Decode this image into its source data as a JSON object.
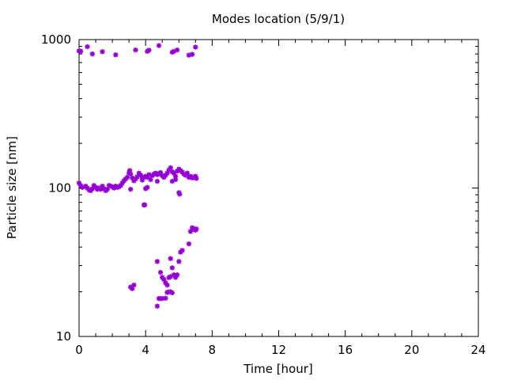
{
  "chart_data": {
    "type": "scatter",
    "title": "Modes location (5/9/1)",
    "xlabel": "Time [hour]",
    "ylabel": "Particle size [nm]",
    "xlim": [
      0,
      24
    ],
    "ylim": [
      10,
      1000
    ],
    "y_scale": "log",
    "x_ticks": [
      "0",
      "4",
      "8",
      "12",
      "16",
      "20",
      "24"
    ],
    "y_ticks": [
      "10",
      "100",
      "1000"
    ],
    "grid": false,
    "marker_color": "#9400d3",
    "series": [
      {
        "points": [
          [
            0.0,
            838
          ],
          [
            0.1,
            835
          ],
          [
            0.5,
            895
          ],
          [
            0.8,
            800
          ],
          [
            1.4,
            829
          ],
          [
            2.2,
            789
          ],
          [
            3.4,
            851
          ],
          [
            4.1,
            834
          ],
          [
            4.2,
            848
          ],
          [
            4.8,
            911
          ],
          [
            5.6,
            822
          ],
          [
            5.7,
            833
          ],
          [
            5.9,
            850
          ],
          [
            6.6,
            785
          ],
          [
            6.8,
            795
          ],
          [
            7.0,
            890
          ],
          [
            0.0,
            108
          ],
          [
            0.1,
            104
          ],
          [
            0.2,
            101
          ],
          [
            0.4,
            103
          ],
          [
            0.5,
            100
          ],
          [
            0.6,
            97
          ],
          [
            0.7,
            96
          ],
          [
            0.8,
            99
          ],
          [
            0.9,
            104
          ],
          [
            1.0,
            101
          ],
          [
            1.1,
            98
          ],
          [
            1.2,
            100
          ],
          [
            1.3,
            98
          ],
          [
            1.4,
            103
          ],
          [
            1.5,
            99
          ],
          [
            1.6,
            96
          ],
          [
            1.7,
            98
          ],
          [
            1.8,
            104
          ],
          [
            1.9,
            103
          ],
          [
            2.0,
            102
          ],
          [
            2.1,
            100
          ],
          [
            2.2,
            103
          ],
          [
            2.3,
            101
          ],
          [
            2.4,
            102
          ],
          [
            2.5,
            104
          ],
          [
            2.6,
            108
          ],
          [
            2.7,
            112
          ],
          [
            2.8,
            115
          ],
          [
            2.9,
            118
          ],
          [
            3.0,
            126
          ],
          [
            3.05,
            131
          ],
          [
            3.1,
            124
          ],
          [
            3.2,
            117
          ],
          [
            3.3,
            112
          ],
          [
            3.4,
            115
          ],
          [
            3.5,
            119
          ],
          [
            3.6,
            126
          ],
          [
            3.7,
            122
          ],
          [
            3.8,
            117
          ],
          [
            3.9,
            118
          ],
          [
            4.0,
            120
          ],
          [
            4.1,
            118
          ],
          [
            4.2,
            123
          ],
          [
            4.3,
            114
          ],
          [
            4.4,
            121
          ],
          [
            4.5,
            124
          ],
          [
            4.6,
            126
          ],
          [
            4.7,
            123
          ],
          [
            4.8,
            125
          ],
          [
            4.9,
            127
          ],
          [
            5.0,
            121
          ],
          [
            5.1,
            118
          ],
          [
            5.2,
            122
          ],
          [
            5.3,
            126
          ],
          [
            5.4,
            132
          ],
          [
            5.5,
            137
          ],
          [
            5.6,
            129
          ],
          [
            5.7,
            126
          ],
          [
            5.8,
            120
          ],
          [
            5.9,
            130
          ],
          [
            6.0,
            134
          ],
          [
            6.1,
            131
          ],
          [
            6.2,
            128
          ],
          [
            6.3,
            124
          ],
          [
            6.4,
            122
          ],
          [
            6.5,
            126
          ],
          [
            6.6,
            118
          ],
          [
            6.7,
            120
          ],
          [
            6.8,
            117
          ],
          [
            6.9,
            118
          ],
          [
            7.0,
            120
          ],
          [
            7.05,
            116
          ],
          [
            3.1,
            98
          ],
          [
            3.8,
            113
          ],
          [
            4.0,
            99
          ],
          [
            4.1,
            101
          ],
          [
            4.7,
            111
          ],
          [
            5.6,
            111
          ],
          [
            5.8,
            114
          ],
          [
            6.0,
            93
          ],
          [
            6.05,
            91
          ],
          [
            3.9,
            77
          ],
          [
            3.95,
            77
          ],
          [
            3.1,
            21.5
          ],
          [
            3.2,
            21
          ],
          [
            3.3,
            22.2
          ],
          [
            4.7,
            16
          ],
          [
            4.8,
            18
          ],
          [
            4.9,
            18
          ],
          [
            5.0,
            18
          ],
          [
            5.2,
            18.1
          ],
          [
            5.3,
            19.8
          ],
          [
            5.4,
            20
          ],
          [
            5.5,
            20
          ],
          [
            5.6,
            19.7
          ],
          [
            4.7,
            32
          ],
          [
            4.9,
            27
          ],
          [
            5.0,
            25
          ],
          [
            5.1,
            24.2
          ],
          [
            5.2,
            23
          ],
          [
            5.3,
            22.2
          ],
          [
            5.4,
            24.9
          ],
          [
            5.5,
            25.3
          ],
          [
            5.6,
            29
          ],
          [
            5.7,
            26
          ],
          [
            5.8,
            25
          ],
          [
            5.5,
            33.5
          ],
          [
            5.9,
            26
          ],
          [
            6.0,
            32
          ],
          [
            6.1,
            37
          ],
          [
            6.2,
            38
          ],
          [
            6.6,
            42
          ],
          [
            6.7,
            51
          ],
          [
            6.8,
            54
          ],
          [
            6.9,
            53
          ],
          [
            7.0,
            52
          ],
          [
            7.05,
            53
          ]
        ]
      }
    ]
  }
}
